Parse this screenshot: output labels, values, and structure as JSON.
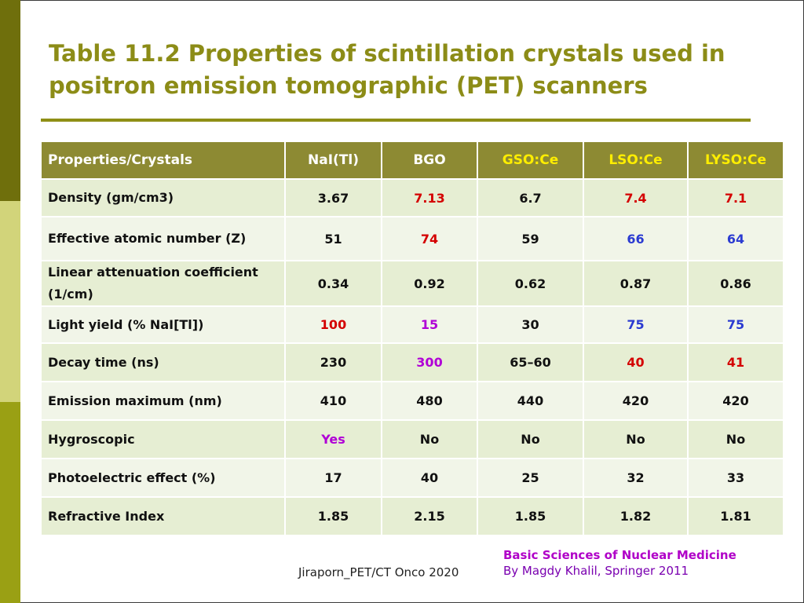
{
  "slide": {
    "title": "Table 11.2 Properties of scintillation crystals used in positron emission tomographic (PET) scanners"
  },
  "colors": {
    "title": "#8c8c17",
    "header_bg": "#8d8a33",
    "highlight_red": "#d40000",
    "highlight_blue": "#2b3bd1",
    "highlight_purple": "#b000d6"
  },
  "table": {
    "headers": [
      "Properties/Crystals",
      "NaI(Tl)",
      "BGO",
      "GSO:Ce",
      "LSO:Ce",
      "LYSO:Ce"
    ],
    "rows": [
      [
        "Density (gm/cm3)",
        "3.67",
        "7.13",
        "6.7",
        "7.4",
        "7.1"
      ],
      [
        "Effective atomic number (Z)",
        "51",
        "74",
        "59",
        "66",
        "64"
      ],
      [
        "Linear attenuation coefficient (1/cm)",
        "0.34",
        "0.92",
        "0.62",
        "0.87",
        "0.86"
      ],
      [
        "Light yield (% NaI[Tl])",
        "100",
        "15",
        "30",
        "75",
        "75"
      ],
      [
        "Decay time (ns)",
        "230",
        "300",
        "65–60",
        "40",
        "41"
      ],
      [
        "Emission maximum (nm)",
        "410",
        "480",
        "440",
        "420",
        "420"
      ],
      [
        "Hygroscopic",
        "Yes",
        "No",
        "No",
        "No",
        "No"
      ],
      [
        "Photoelectric effect (%)",
        "17",
        "40",
        "25",
        "32",
        "33"
      ],
      [
        "Refractive Index",
        "1.85",
        "2.15",
        "1.85",
        "1.82",
        "1.81"
      ]
    ]
  },
  "footer": {
    "author": "Jiraporn_PET/CT Onco 2020",
    "reference_title": "Basic Sciences of Nuclear Medicine",
    "reference_author": "By Magdy Khalil, Springer 2011"
  }
}
